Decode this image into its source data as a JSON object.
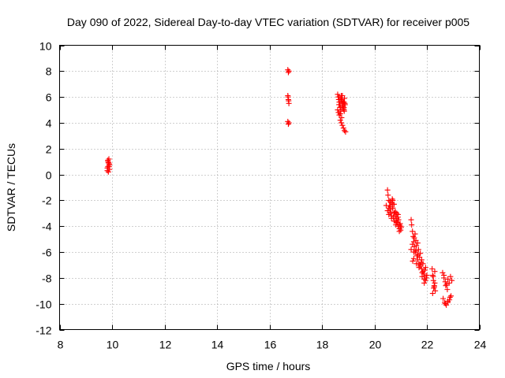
{
  "chart_data": {
    "type": "scatter",
    "title": "Day 090 of 2022, Sidereal Day-to-day VTEC variation (SDTVAR) for receiver p005",
    "xlabel": "GPS time / hours",
    "ylabel": "SDTVAR / TECUs",
    "xlim": [
      8,
      24
    ],
    "ylim": [
      -12,
      10
    ],
    "xticks": [
      8,
      10,
      12,
      14,
      16,
      18,
      20,
      22,
      24
    ],
    "yticks": [
      -12,
      -10,
      -8,
      -6,
      -4,
      -2,
      0,
      2,
      4,
      6,
      8,
      10
    ],
    "grid": true,
    "marker": "+",
    "color": "#ff0000",
    "series": [
      {
        "name": "p005",
        "x": [
          9.82,
          9.84,
          9.86,
          9.88,
          9.9,
          9.82,
          9.85,
          9.88,
          9.9,
          9.84,
          9.87,
          9.89,
          9.86,
          16.7,
          16.72,
          16.74,
          16.7,
          16.72,
          16.74,
          16.71,
          16.73,
          16.7,
          16.72,
          16.74,
          18.6,
          18.62,
          18.64,
          18.66,
          18.68,
          18.7,
          18.72,
          18.74,
          18.76,
          18.78,
          18.8,
          18.82,
          18.84,
          18.86,
          18.88,
          18.6,
          18.63,
          18.66,
          18.69,
          18.72,
          18.75,
          18.78,
          18.81,
          18.84,
          18.87,
          18.7,
          18.74,
          18.78,
          18.82,
          18.86,
          18.9,
          18.65,
          18.7,
          18.75,
          18.8,
          18.85,
          18.66,
          18.72,
          18.78,
          18.84,
          20.45,
          20.5,
          20.52,
          20.55,
          20.58,
          20.6,
          20.62,
          20.65,
          20.68,
          20.7,
          20.72,
          20.75,
          20.78,
          20.8,
          20.82,
          20.85,
          20.88,
          20.9,
          20.92,
          20.95,
          20.98,
          21.0,
          21.02,
          20.5,
          20.55,
          20.6,
          20.65,
          20.7,
          20.75,
          20.8,
          20.85,
          20.9,
          20.95,
          21.0,
          20.6,
          20.65,
          20.7,
          20.75,
          20.8,
          20.85,
          20.9,
          20.95,
          20.55,
          20.62,
          20.7,
          21.4,
          21.42,
          21.45,
          21.48,
          21.5,
          21.52,
          21.55,
          21.58,
          21.6,
          21.62,
          21.65,
          21.68,
          21.7,
          21.72,
          21.75,
          21.78,
          21.8,
          21.82,
          21.85,
          21.88,
          21.9,
          21.92,
          21.95,
          21.98,
          22.0,
          21.45,
          21.5,
          21.55,
          21.6,
          21.65,
          21.7,
          21.75,
          21.8,
          21.85,
          21.9,
          21.95,
          21.5,
          21.58,
          21.66,
          21.74,
          21.82,
          21.9,
          21.4,
          21.46,
          21.52,
          22.2,
          22.22,
          22.25,
          22.28,
          22.3,
          22.32,
          22.22,
          22.26,
          22.3,
          22.24,
          22.28,
          22.6,
          22.65,
          22.7,
          22.75,
          22.8,
          22.85,
          22.9,
          22.95,
          22.62,
          22.68,
          22.74,
          22.8,
          22.86,
          22.92,
          22.65,
          22.72,
          22.8,
          22.88,
          22.7,
          22.78
        ],
        "y": [
          0.3,
          0.6,
          0.9,
          1.2,
          0.8,
          0.5,
          1.0,
          0.7,
          0.4,
          1.1,
          0.9,
          0.6,
          0.2,
          8.1,
          7.9,
          8.0,
          6.1,
          5.8,
          5.5,
          6.0,
          5.7,
          4.1,
          3.9,
          4.0,
          6.2,
          6.0,
          5.8,
          5.6,
          5.4,
          5.2,
          5.9,
          6.1,
          5.7,
          5.5,
          5.3,
          5.1,
          5.6,
          5.9,
          5.4,
          5.0,
          4.8,
          4.6,
          5.2,
          4.9,
          5.8,
          5.3,
          5.6,
          5.0,
          5.5,
          4.2,
          4.0,
          3.8,
          3.6,
          3.4,
          3.3,
          5.4,
          4.7,
          4.4,
          5.1,
          4.9,
          6.0,
          5.7,
          6.1,
          5.2,
          -2.4,
          -1.2,
          -1.6,
          -2.0,
          -2.4,
          -2.7,
          -3.0,
          -2.2,
          -1.9,
          -2.6,
          -3.3,
          -3.6,
          -2.9,
          -3.2,
          -3.9,
          -3.4,
          -3.7,
          -4.0,
          -3.5,
          -4.2,
          -3.8,
          -4.3,
          -4.1,
          -2.8,
          -3.1,
          -2.5,
          -3.4,
          -2.0,
          -2.3,
          -3.6,
          -3.0,
          -3.3,
          -3.9,
          -4.0,
          -2.1,
          -3.2,
          -2.6,
          -3.0,
          -2.9,
          -3.7,
          -3.1,
          -4.4,
          -2.6,
          -2.9,
          -2.3,
          -3.5,
          -3.9,
          -4.4,
          -4.8,
          -5.2,
          -5.6,
          -6.0,
          -5.1,
          -5.5,
          -6.3,
          -6.6,
          -5.8,
          -6.9,
          -6.4,
          -7.1,
          -6.8,
          -7.3,
          -7.6,
          -6.9,
          -7.7,
          -7.9,
          -7.4,
          -8.2,
          -8.0,
          -7.8,
          -5.4,
          -6.0,
          -4.6,
          -6.9,
          -5.3,
          -7.2,
          -6.1,
          -6.6,
          -7.5,
          -8.1,
          -7.2,
          -6.5,
          -5.9,
          -6.2,
          -7.0,
          -7.9,
          -8.4,
          -5.8,
          -6.7,
          -4.9,
          -7.3,
          -7.8,
          -8.2,
          -8.6,
          -7.5,
          -9.0,
          -9.2,
          -8.8,
          -8.4,
          -7.9,
          -8.7,
          -7.6,
          -8.0,
          -8.3,
          -8.5,
          -8.1,
          -8.4,
          -7.9,
          -8.2,
          -9.6,
          -9.9,
          -10.1,
          -9.8,
          -9.7,
          -9.4,
          -7.8,
          -8.6,
          -9.9,
          -9.5,
          -10.0,
          -8.9
        ]
      }
    ]
  }
}
